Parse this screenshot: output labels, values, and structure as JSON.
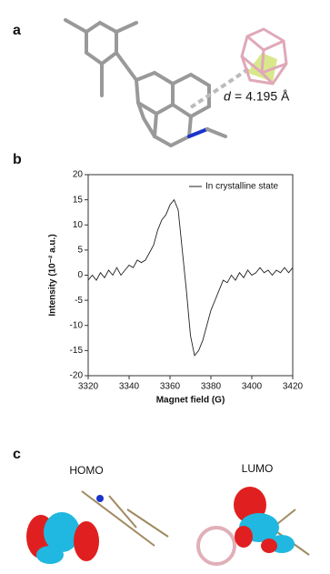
{
  "panel_a": {
    "label": "a",
    "distance_symbol": "d",
    "distance_value": "= 4.195 Å"
  },
  "panel_b": {
    "label": "b"
  },
  "panel_c": {
    "label": "c",
    "homo": "HOMO",
    "lumo": "LUMO"
  },
  "chart_data": {
    "type": "line",
    "xlabel": "Magnet field (G)",
    "ylabel": "Intensity (10⁻² a.u.)",
    "x": [
      3320,
      3322,
      3324,
      3326,
      3328,
      3330,
      3332,
      3334,
      3336,
      3338,
      3340,
      3342,
      3344,
      3346,
      3348,
      3350,
      3352,
      3354,
      3356,
      3358,
      3360,
      3362,
      3364,
      3366,
      3368,
      3370,
      3372,
      3374,
      3376,
      3378,
      3380,
      3382,
      3384,
      3386,
      3388,
      3390,
      3392,
      3394,
      3396,
      3398,
      3400,
      3402,
      3404,
      3406,
      3408,
      3410,
      3412,
      3414,
      3416,
      3418,
      3420
    ],
    "series": [
      {
        "name": "In crystalline state",
        "color": "#222222",
        "values": [
          -1,
          0,
          -1,
          0.5,
          -0.5,
          1,
          0,
          1.5,
          0,
          1,
          2,
          1.5,
          3,
          2.5,
          3,
          4.5,
          6,
          9,
          11,
          12,
          14,
          15,
          13,
          5,
          -3,
          -12,
          -16,
          -15,
          -13,
          -10,
          -7,
          -5,
          -3,
          -1,
          -1.5,
          0,
          -1,
          0.5,
          -0.5,
          1,
          0,
          0.5,
          1.5,
          0.5,
          1,
          0,
          1,
          0.5,
          1.5,
          0.5,
          1.5
        ]
      }
    ],
    "xlim": [
      3320,
      3420
    ],
    "xticks": [
      3320,
      3340,
      3360,
      3380,
      3400,
      3420
    ],
    "ylim": [
      -20,
      20
    ],
    "yticks": [
      -20,
      -15,
      -10,
      -5,
      0,
      5,
      10,
      15,
      20
    ],
    "legend": "upper right"
  }
}
